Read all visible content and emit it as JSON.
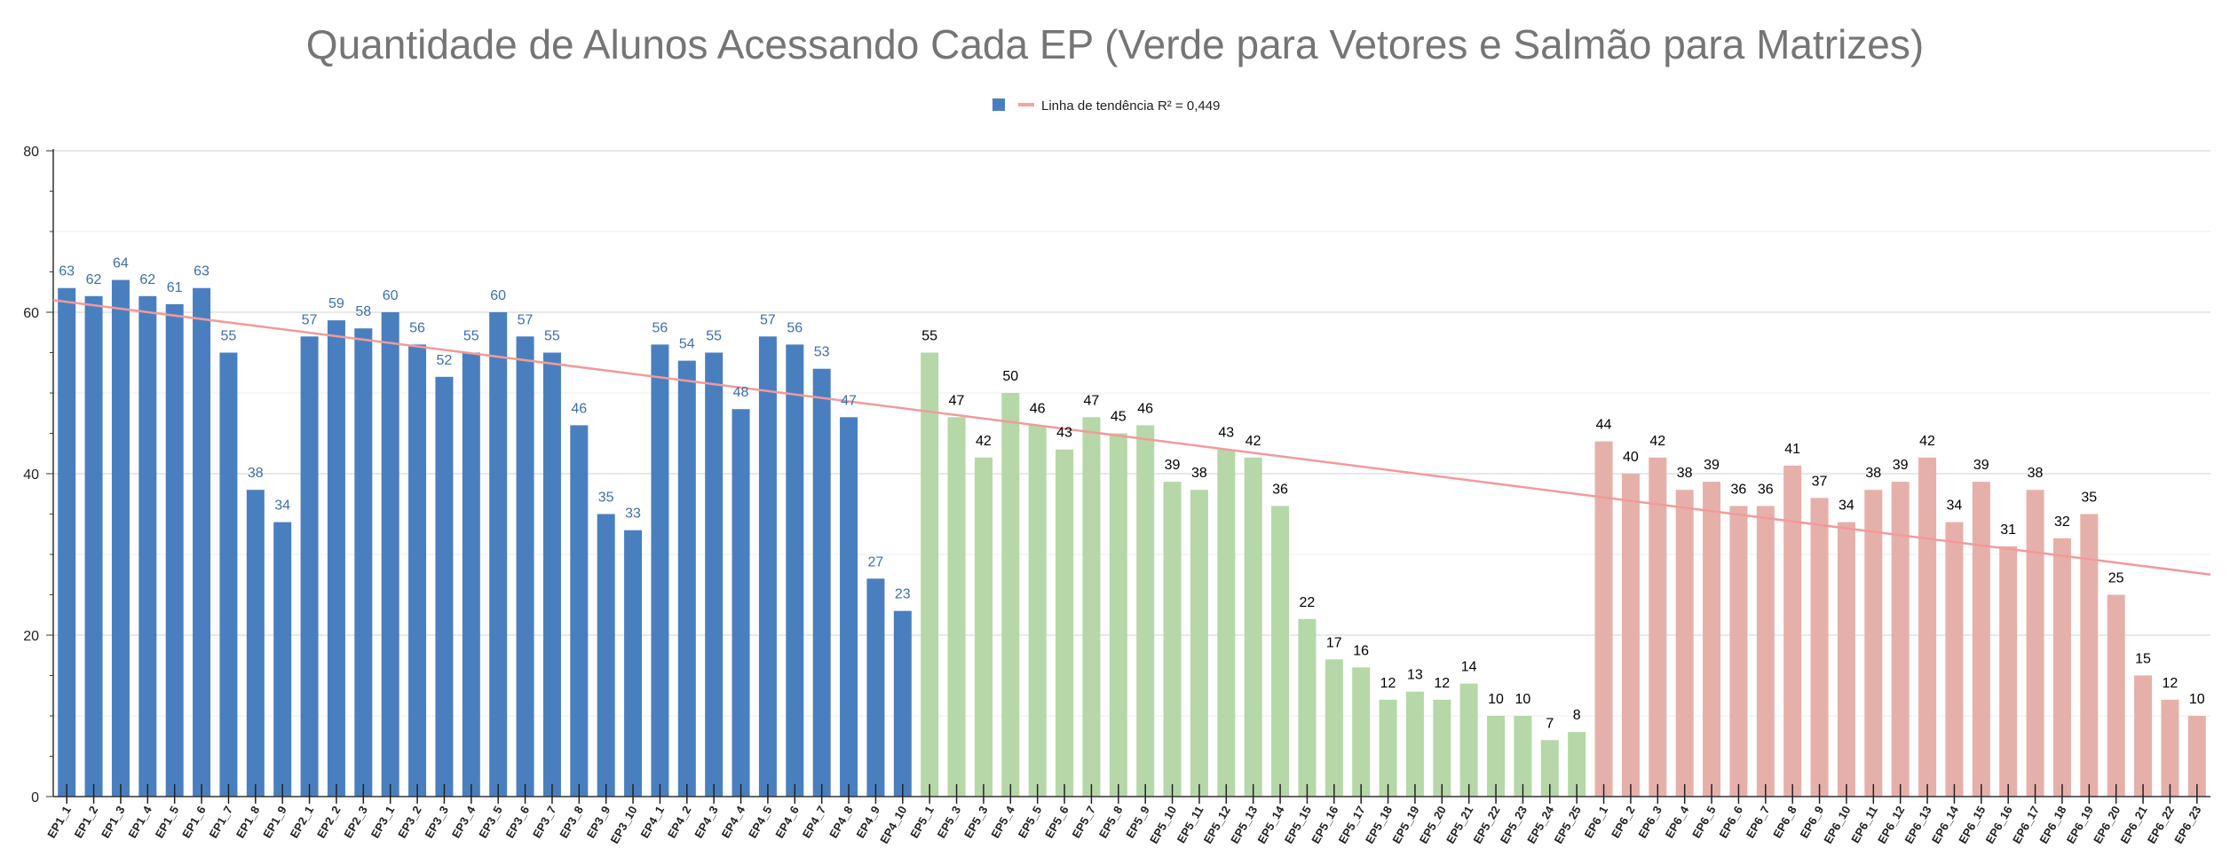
{
  "chart_data": {
    "type": "bar",
    "title": "Quantidade de Alunos Acessando Cada EP (Verde para Vetores e Salmão para Matrizes)",
    "xlabel": "",
    "ylabel": "",
    "ylim": [
      0,
      80
    ],
    "yticks": [
      0,
      20,
      40,
      60,
      80
    ],
    "grid": true,
    "legend_position": "top",
    "legend": [
      {
        "label": "",
        "color": "#4a7fbf",
        "marker": "square"
      },
      {
        "label": "Linha de tendência R² = 0,449",
        "color": "#f4a3a3",
        "marker": "line"
      }
    ],
    "colors": {
      "blue": "#4a7fbf",
      "green": "#b6d7a8",
      "salmon": "#e6b0aa",
      "trend": "#f29a9a",
      "blue_label": "#3d6fad",
      "black_label": "#000000"
    },
    "categories": [
      "EP1_1",
      "EP1_2",
      "EP1_3",
      "EP1_4",
      "EP1_5",
      "EP1_6",
      "EP1_7",
      "EP1_8",
      "EP1_9",
      "EP2_1",
      "EP2_2",
      "EP2_3",
      "EP3_1",
      "EP3_2",
      "EP3_3",
      "EP3_4",
      "EP3_5",
      "EP3_6",
      "EP3_7",
      "EP3_8",
      "EP3_9",
      "EP3_10",
      "EP4_1",
      "EP4_2",
      "EP4_3",
      "EP4_4",
      "EP4_5",
      "EP4_6",
      "EP4_7",
      "EP4_8",
      "EP4_9",
      "EP4_10",
      "EP5_1",
      "EP5_3",
      "EP5_3",
      "EP5_4",
      "EP5_5",
      "EP5_6",
      "EP5_7",
      "EP5_8",
      "EP5_9",
      "EP5_10",
      "EP5_11",
      "EP5_12",
      "EP5_13",
      "EP5_14",
      "EP5_15",
      "EP5_16",
      "EP5_17",
      "EP5_18",
      "EP5_19",
      "EP5_20",
      "EP5_21",
      "EP5_22",
      "EP5_23",
      "EP5_24",
      "EP5_25",
      "EP6_1",
      "EP6_2",
      "EP6_3",
      "EP6_4",
      "EP6_5",
      "EP6_6",
      "EP6_7",
      "EP6_8",
      "EP6_9",
      "EP6_10",
      "EP6_11",
      "EP6_12",
      "EP6_13",
      "EP6_14",
      "EP6_15",
      "EP6_16",
      "EP6_17",
      "EP6_18",
      "EP6_19",
      "EP6_20",
      "EP6_21",
      "EP6_22",
      "EP6_23"
    ],
    "values": [
      63,
      62,
      64,
      62,
      61,
      63,
      55,
      38,
      34,
      57,
      59,
      58,
      60,
      56,
      52,
      55,
      60,
      57,
      55,
      46,
      35,
      33,
      56,
      54,
      55,
      48,
      57,
      56,
      53,
      47,
      27,
      23,
      55,
      47,
      42,
      50,
      46,
      43,
      47,
      45,
      46,
      39,
      38,
      43,
      42,
      36,
      22,
      17,
      16,
      12,
      13,
      12,
      14,
      10,
      10,
      7,
      8,
      44,
      40,
      42,
      38,
      39,
      36,
      36,
      41,
      37,
      34,
      38,
      39,
      42,
      34,
      39,
      31,
      38,
      32,
      35,
      25,
      15,
      12,
      10
    ],
    "bar_groups": [
      {
        "color": "blue",
        "label_color": "blue_label",
        "count": 32
      },
      {
        "color": "green",
        "label_color": "black_label",
        "count": 25
      },
      {
        "color": "salmon",
        "label_color": "black_label",
        "count": 23
      }
    ],
    "trendline": {
      "label": "Linha de tendência R² = 0,449",
      "y_start": 61.5,
      "y_end": 27.5
    }
  }
}
